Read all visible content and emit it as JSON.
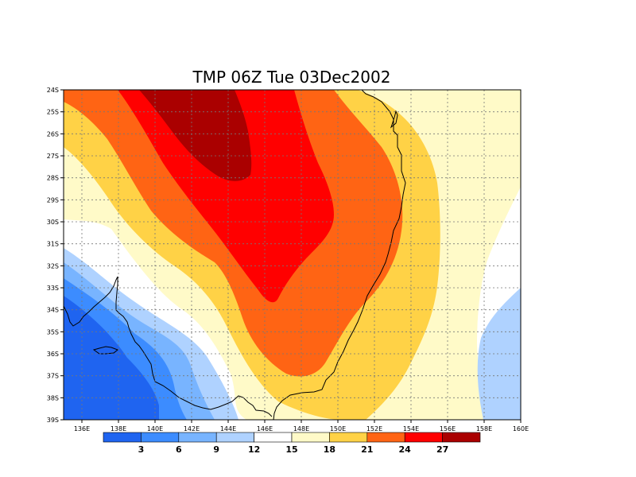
{
  "chart_data": {
    "type": "heatmap",
    "title": "TMP 06Z Tue 03Dec2002",
    "x_ticks": [
      "136E",
      "138E",
      "140E",
      "142E",
      "144E",
      "146E",
      "148E",
      "150E",
      "152E",
      "154E",
      "156E",
      "158E",
      "160E"
    ],
    "y_ticks": [
      "24S",
      "25S",
      "26S",
      "27S",
      "28S",
      "29S",
      "30S",
      "31S",
      "32S",
      "33S",
      "34S",
      "35S",
      "36S",
      "37S",
      "38S",
      "39S"
    ],
    "xlim": [
      135,
      160
    ],
    "ylim": [
      -39,
      -24
    ],
    "grid": true,
    "colorbar": {
      "colors": [
        "#1f64f0",
        "#3c8cff",
        "#78b4ff",
        "#afd2ff",
        "#ffffff",
        "#fffac8",
        "#ffd246",
        "#ff6414",
        "#ff0000",
        "#aa0000"
      ],
      "labels": [
        "3",
        "6",
        "9",
        "12",
        "15",
        "18",
        "21",
        "24",
        "27"
      ]
    }
  }
}
